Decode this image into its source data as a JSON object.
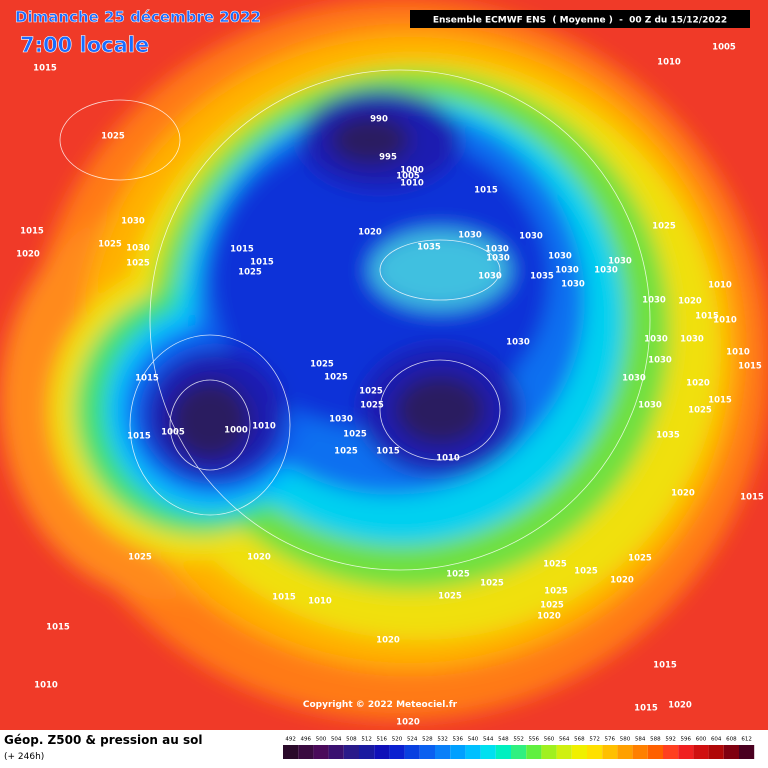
{
  "header": {
    "date": "Dimanche 25 décembre 2022",
    "time": "7:00 locale",
    "model": "Ensemble ECMWF ENS  ( Moyenne )  -  00 Z du 15/12/2022"
  },
  "copyright": "Copyright © 2022 Meteociel.fr",
  "footer": {
    "title": "Géop. Z500 & pression au sol",
    "lead": "(+ 246h)"
  },
  "isobar_labels": [
    1015,
    1005,
    1010,
    990,
    995,
    1000,
    1005,
    1010,
    1015,
    1025,
    1030,
    1015,
    1020,
    1025,
    1030,
    1025,
    1015,
    1015,
    1025,
    1020,
    1035,
    1030,
    1030,
    1030,
    1030,
    1030,
    1030,
    1030,
    1030,
    1035,
    1030,
    1030,
    1025,
    1010,
    1030,
    1020,
    1015,
    1010,
    1030,
    1030,
    1030,
    1010,
    1015,
    1015,
    1025,
    1025,
    1025,
    1025,
    1030,
    1025,
    1025,
    1015,
    1005,
    1000,
    1010,
    1015,
    1010,
    1015,
    1020,
    1025,
    1020,
    1015,
    1025,
    1020,
    1015,
    1010,
    1025,
    1025,
    1025,
    1025,
    1025,
    1025,
    1020,
    1020,
    1025,
    1020,
    1015,
    1010,
    1015,
    1020,
    1015,
    1020,
    1025,
    1030,
    1030,
    1030,
    1035
  ],
  "scale": {
    "values": [
      492,
      496,
      500,
      504,
      508,
      512,
      516,
      520,
      524,
      528,
      532,
      536,
      540,
      544,
      548,
      552,
      556,
      560,
      564,
      568,
      572,
      576,
      580,
      584,
      588,
      592,
      596,
      600,
      604,
      608,
      612
    ],
    "colors": [
      "#2a0a2a",
      "#3a0a40",
      "#4a0a5a",
      "#3a1070",
      "#2a1a8a",
      "#1a1aa0",
      "#1010b8",
      "#0a20d0",
      "#0a40e0",
      "#0a60f0",
      "#0a80f8",
      "#00a0ff",
      "#00c0ff",
      "#00e0f0",
      "#00f0c0",
      "#30f080",
      "#60f040",
      "#a0f020",
      "#d0f010",
      "#f0f000",
      "#ffe000",
      "#ffc000",
      "#ffa000",
      "#ff8000",
      "#ff6000",
      "#ff4020",
      "#f02020",
      "#d01010",
      "#b00808",
      "#800010",
      "#4a0020"
    ]
  }
}
